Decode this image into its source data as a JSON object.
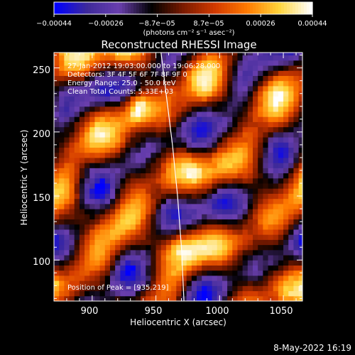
{
  "chart_data": {
    "type": "heatmap",
    "title": "Reconstructed RHESSI Image",
    "xlabel": "Heliocentric X (arcsec)",
    "ylabel": "Heliocentric Y (arcsec)",
    "xlim": [
      870,
      1065
    ],
    "ylim": [
      68,
      262
    ],
    "x_ticks": [
      900,
      950,
      1000,
      1050
    ],
    "y_ticks": [
      100,
      150,
      200,
      250
    ],
    "colorbar": {
      "range": [
        -0.00044,
        0.00044
      ],
      "tick_labels": [
        "−0.00044",
        "−0.00026",
        "−8.7e−05",
        "8.7e−05",
        "0.00026",
        "0.00044"
      ],
      "units_label": "(photons cm⁻² s⁻¹ asec⁻²)",
      "colormap": [
        "#0000ff",
        "#3e2a9a",
        "#6a3fae",
        "#000000",
        "#7a1a00",
        "#d23a00",
        "#ff7a00",
        "#ffd43a",
        "#ffffff"
      ]
    },
    "annotations": {
      "time_range": "27-Jan-2012 19:03:00.000 to 19:06:28.000",
      "detectors": "Detectors: 3F 4F 5F 6F 7F 8F 9F  0",
      "energy": "Energy Range: 25.0 - 50.0 keV",
      "method": "Clean    Total Counts: 5.33E+03",
      "peak": "Position of Peak = [935,219]"
    },
    "limb": [
      [
        954,
        262
      ],
      [
        958,
        230
      ],
      [
        963,
        190
      ],
      [
        967,
        150
      ],
      [
        970,
        110
      ],
      [
        972,
        68
      ]
    ],
    "grid": false
  },
  "footer": {
    "date": "8-May-2022 16:19"
  }
}
